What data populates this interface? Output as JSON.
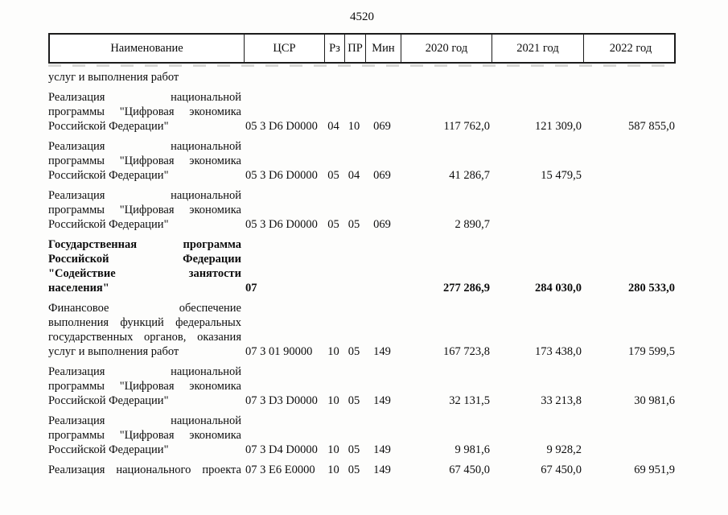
{
  "page": {
    "number": "4520"
  },
  "table": {
    "headers": [
      "Наименование",
      "ЦСР",
      "Рз",
      "ПР",
      "Мин",
      "2020 год",
      "2021 год",
      "2022 год"
    ],
    "continuation_line": "услуг и выполнения работ",
    "rows": [
      {
        "name_lines": [
          "Реализация национальной",
          "программы \"Цифровая экономика",
          "Российской Федерации\""
        ],
        "csr": "05 3 D6 D0000",
        "rz": "04",
        "pr": "10",
        "min": "069",
        "y2020": "117 762,0",
        "y2021": "121 309,0",
        "y2022": "587 855,0",
        "bold": false,
        "single_line": false
      },
      {
        "name_lines": [
          "Реализация национальной",
          "программы \"Цифровая экономика",
          "Российской Федерации\""
        ],
        "csr": "05 3 D6 D0000",
        "rz": "05",
        "pr": "04",
        "min": "069",
        "y2020": "41 286,7",
        "y2021": "15 479,5",
        "y2022": "",
        "bold": false,
        "single_line": false
      },
      {
        "name_lines": [
          "Реализация национальной",
          "программы \"Цифровая экономика",
          "Российской Федерации\""
        ],
        "csr": "05 3 D6 D0000",
        "rz": "05",
        "pr": "05",
        "min": "069",
        "y2020": "2 890,7",
        "y2021": "",
        "y2022": "",
        "bold": false,
        "single_line": false
      },
      {
        "name_lines": [
          "Государственная программа",
          "Российской Федерации",
          "\"Содействие занятости",
          "населения\""
        ],
        "csr": "07",
        "rz": "",
        "pr": "",
        "min": "",
        "y2020": "277 286,9",
        "y2021": "284 030,0",
        "y2022": "280 533,0",
        "bold": true,
        "single_line": false
      },
      {
        "name_lines": [
          "Финансовое обеспечение",
          "выполнения функций федеральных",
          "государственных органов, оказания",
          "услуг и выполнения работ"
        ],
        "csr": "07 3 01 90000",
        "rz": "10",
        "pr": "05",
        "min": "149",
        "y2020": "167 723,8",
        "y2021": "173 438,0",
        "y2022": "179 599,5",
        "bold": false,
        "single_line": false
      },
      {
        "name_lines": [
          "Реализация национальной",
          "программы \"Цифровая экономика",
          "Российской Федерации\""
        ],
        "csr": "07 3 D3 D0000",
        "rz": "10",
        "pr": "05",
        "min": "149",
        "y2020": "32 131,5",
        "y2021": "33 213,8",
        "y2022": "30 981,6",
        "bold": false,
        "single_line": false
      },
      {
        "name_lines": [
          "Реализация национальной",
          "программы \"Цифровая экономика",
          "Российской Федерации\""
        ],
        "csr": "07 3 D4 D0000",
        "rz": "10",
        "pr": "05",
        "min": "149",
        "y2020": "9 981,6",
        "y2021": "9 928,2",
        "y2022": "",
        "bold": false,
        "single_line": false
      },
      {
        "name_lines": [
          "Реализация национального проекта"
        ],
        "csr": "07 3 E6 E0000",
        "rz": "10",
        "pr": "05",
        "min": "149",
        "y2020": "67 450,0",
        "y2021": "67 450,0",
        "y2022": "69 951,9",
        "bold": false,
        "single_line": true
      }
    ]
  }
}
